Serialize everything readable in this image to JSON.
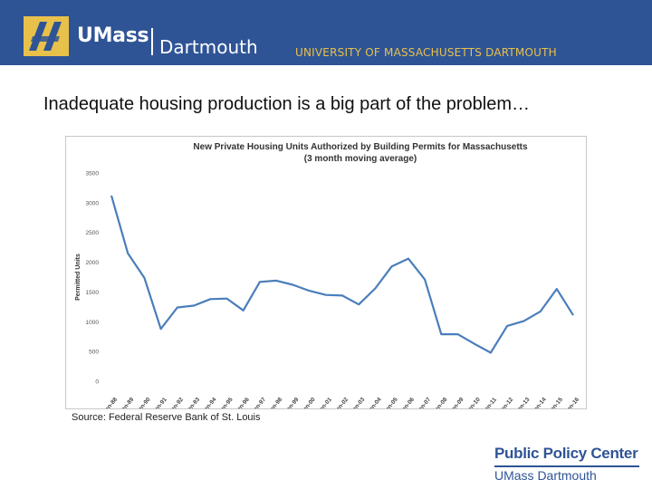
{
  "header": {
    "brand": "UMass",
    "campus": "Dartmouth",
    "university": "UNIVERSITY OF MASSACHUSETTS DARTMOUTH",
    "bg_color": "#2f5496",
    "logo_icon": "umass-logo-icon"
  },
  "slide_title": "Inadequate housing production is a big part of the problem…",
  "chart_data": {
    "type": "line",
    "title": "New Private Housing Units Authorized by Building Permits for Massachusetts",
    "subtitle": "(3 month moving average)",
    "xlabel": "",
    "ylabel": "Permitted Units",
    "ylim": [
      0,
      3500
    ],
    "yticks": [
      0,
      500,
      1000,
      1500,
      2000,
      2500,
      3000,
      3500
    ],
    "ytick_labels": [
      "0",
      "500",
      "1000",
      "1500",
      "2000",
      "2500",
      "3000",
      "3500"
    ],
    "grid": false,
    "legend": "none",
    "line_color": "#4a7ebb",
    "categories": [
      "Jan-88",
      "Jan-89",
      "Jan-90",
      "Jan-91",
      "Jan-92",
      "Jan-93",
      "Jan-94",
      "Jan-95",
      "Jan-96",
      "Jan-97",
      "Jan-98",
      "Jan-99",
      "Jan-00",
      "Jan-01",
      "Jan-02",
      "Jan-03",
      "Jan-04",
      "Jan-05",
      "Jan-06",
      "Jan-07",
      "Jan-08",
      "Jan-09",
      "Jan-10",
      "Jan-11",
      "Jan-12",
      "Jan-13",
      "Jan-14",
      "Jan-15",
      "Jan-16"
    ],
    "series": [
      {
        "values": [
          3120,
          2150,
          1740,
          880,
          1240,
          1270,
          1380,
          1390,
          1190,
          1670,
          1690,
          1620,
          1520,
          1450,
          1440,
          1290,
          1560,
          1930,
          2060,
          1710,
          790,
          790,
          630,
          480,
          930,
          1010,
          1170,
          1550,
          1110
        ]
      }
    ]
  },
  "source": "Source: Federal Reserve Bank of St. Louis",
  "footer": {
    "title": "Public Policy Center",
    "subtitle": "UMass Dartmouth"
  }
}
